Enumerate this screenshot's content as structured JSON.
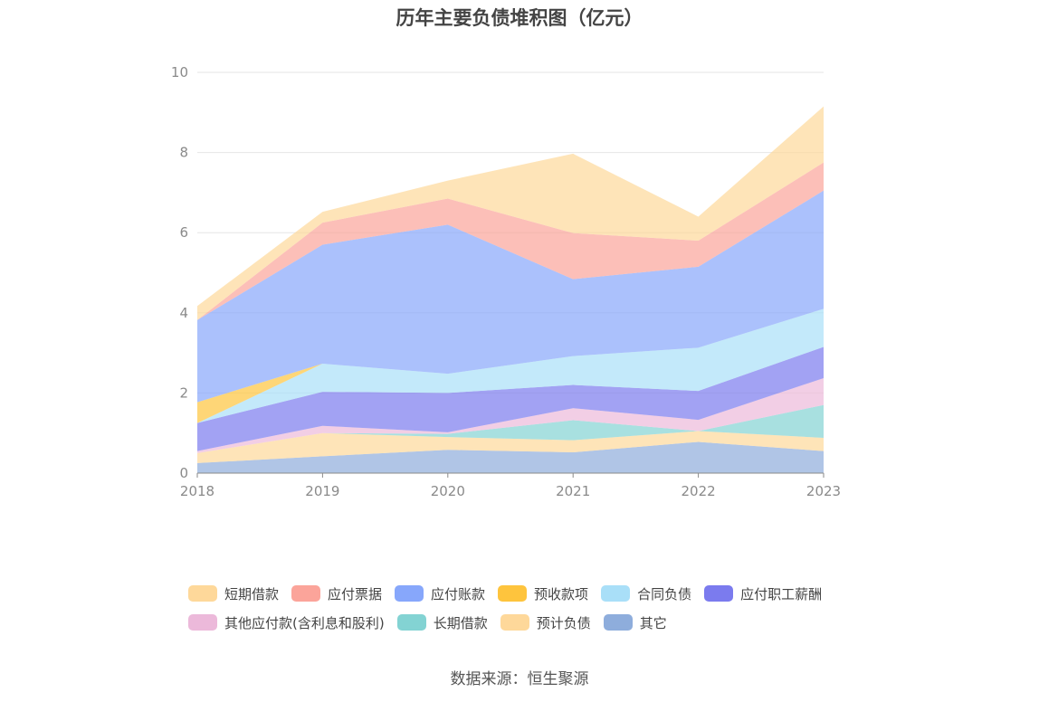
{
  "chart_data": {
    "type": "area",
    "stacked": true,
    "title": "历年主要负债堆积图（亿元）",
    "x": [
      "2018",
      "2019",
      "2020",
      "2021",
      "2022",
      "2023"
    ],
    "ylim": [
      0,
      10
    ],
    "yticks": [
      "0",
      "2",
      "4",
      "6",
      "8",
      "10"
    ],
    "grid": true,
    "legend_position": "bottom",
    "series": [
      {
        "name": "其它",
        "color": "#8eaddc",
        "values": [
          0.25,
          0.42,
          0.58,
          0.52,
          0.78,
          0.55
        ]
      },
      {
        "name": "预计负债",
        "color": "#fed89a",
        "values": [
          0.25,
          0.58,
          0.32,
          0.3,
          0.27,
          0.33
        ]
      },
      {
        "name": "长期借款",
        "color": "#83d3d3",
        "values": [
          0.0,
          0.0,
          0.08,
          0.5,
          0.0,
          0.82
        ]
      },
      {
        "name": "其他应付款(含利息和股利)",
        "color": "#ecb9da",
        "values": [
          0.05,
          0.18,
          0.04,
          0.3,
          0.28,
          0.67
        ]
      },
      {
        "name": "应付职工薪酬",
        "color": "#7b7bee",
        "values": [
          0.7,
          0.85,
          0.98,
          0.58,
          0.72,
          0.78
        ]
      },
      {
        "name": "合同负债",
        "color": "#a9dff8",
        "values": [
          0.0,
          0.7,
          0.48,
          0.72,
          1.08,
          0.95
        ]
      },
      {
        "name": "预收款项",
        "color": "#fec43d",
        "values": [
          0.52,
          0.0,
          0.0,
          0.0,
          0.0,
          0.0
        ]
      },
      {
        "name": "应付账款",
        "color": "#87a7fb",
        "values": [
          2.05,
          2.97,
          3.72,
          1.92,
          2.02,
          2.95
        ]
      },
      {
        "name": "应付票据",
        "color": "#fba49a",
        "values": [
          0.0,
          0.55,
          0.65,
          1.15,
          0.65,
          0.7
        ]
      },
      {
        "name": "短期借款",
        "color": "#fed89a",
        "values": [
          0.35,
          0.27,
          0.45,
          1.98,
          0.6,
          1.4
        ]
      }
    ]
  },
  "legend": {
    "row1": [
      {
        "label": "短期借款",
        "color": "#fed89a"
      },
      {
        "label": "应付票据",
        "color": "#fba49a"
      },
      {
        "label": "应付账款",
        "color": "#87a7fb"
      },
      {
        "label": "预收款项",
        "color": "#fec43d"
      },
      {
        "label": "合同负债",
        "color": "#a9dff8"
      },
      {
        "label": "应付职工薪酬",
        "color": "#7b7bee"
      }
    ],
    "row2": [
      {
        "label": "其他应付款(含利息和股利)",
        "color": "#ecb9da"
      },
      {
        "label": "长期借款",
        "color": "#83d3d3"
      },
      {
        "label": "预计负债",
        "color": "#fed89a"
      },
      {
        "label": "其它",
        "color": "#8eaddc"
      }
    ]
  },
  "source": "数据来源：恒生聚源"
}
